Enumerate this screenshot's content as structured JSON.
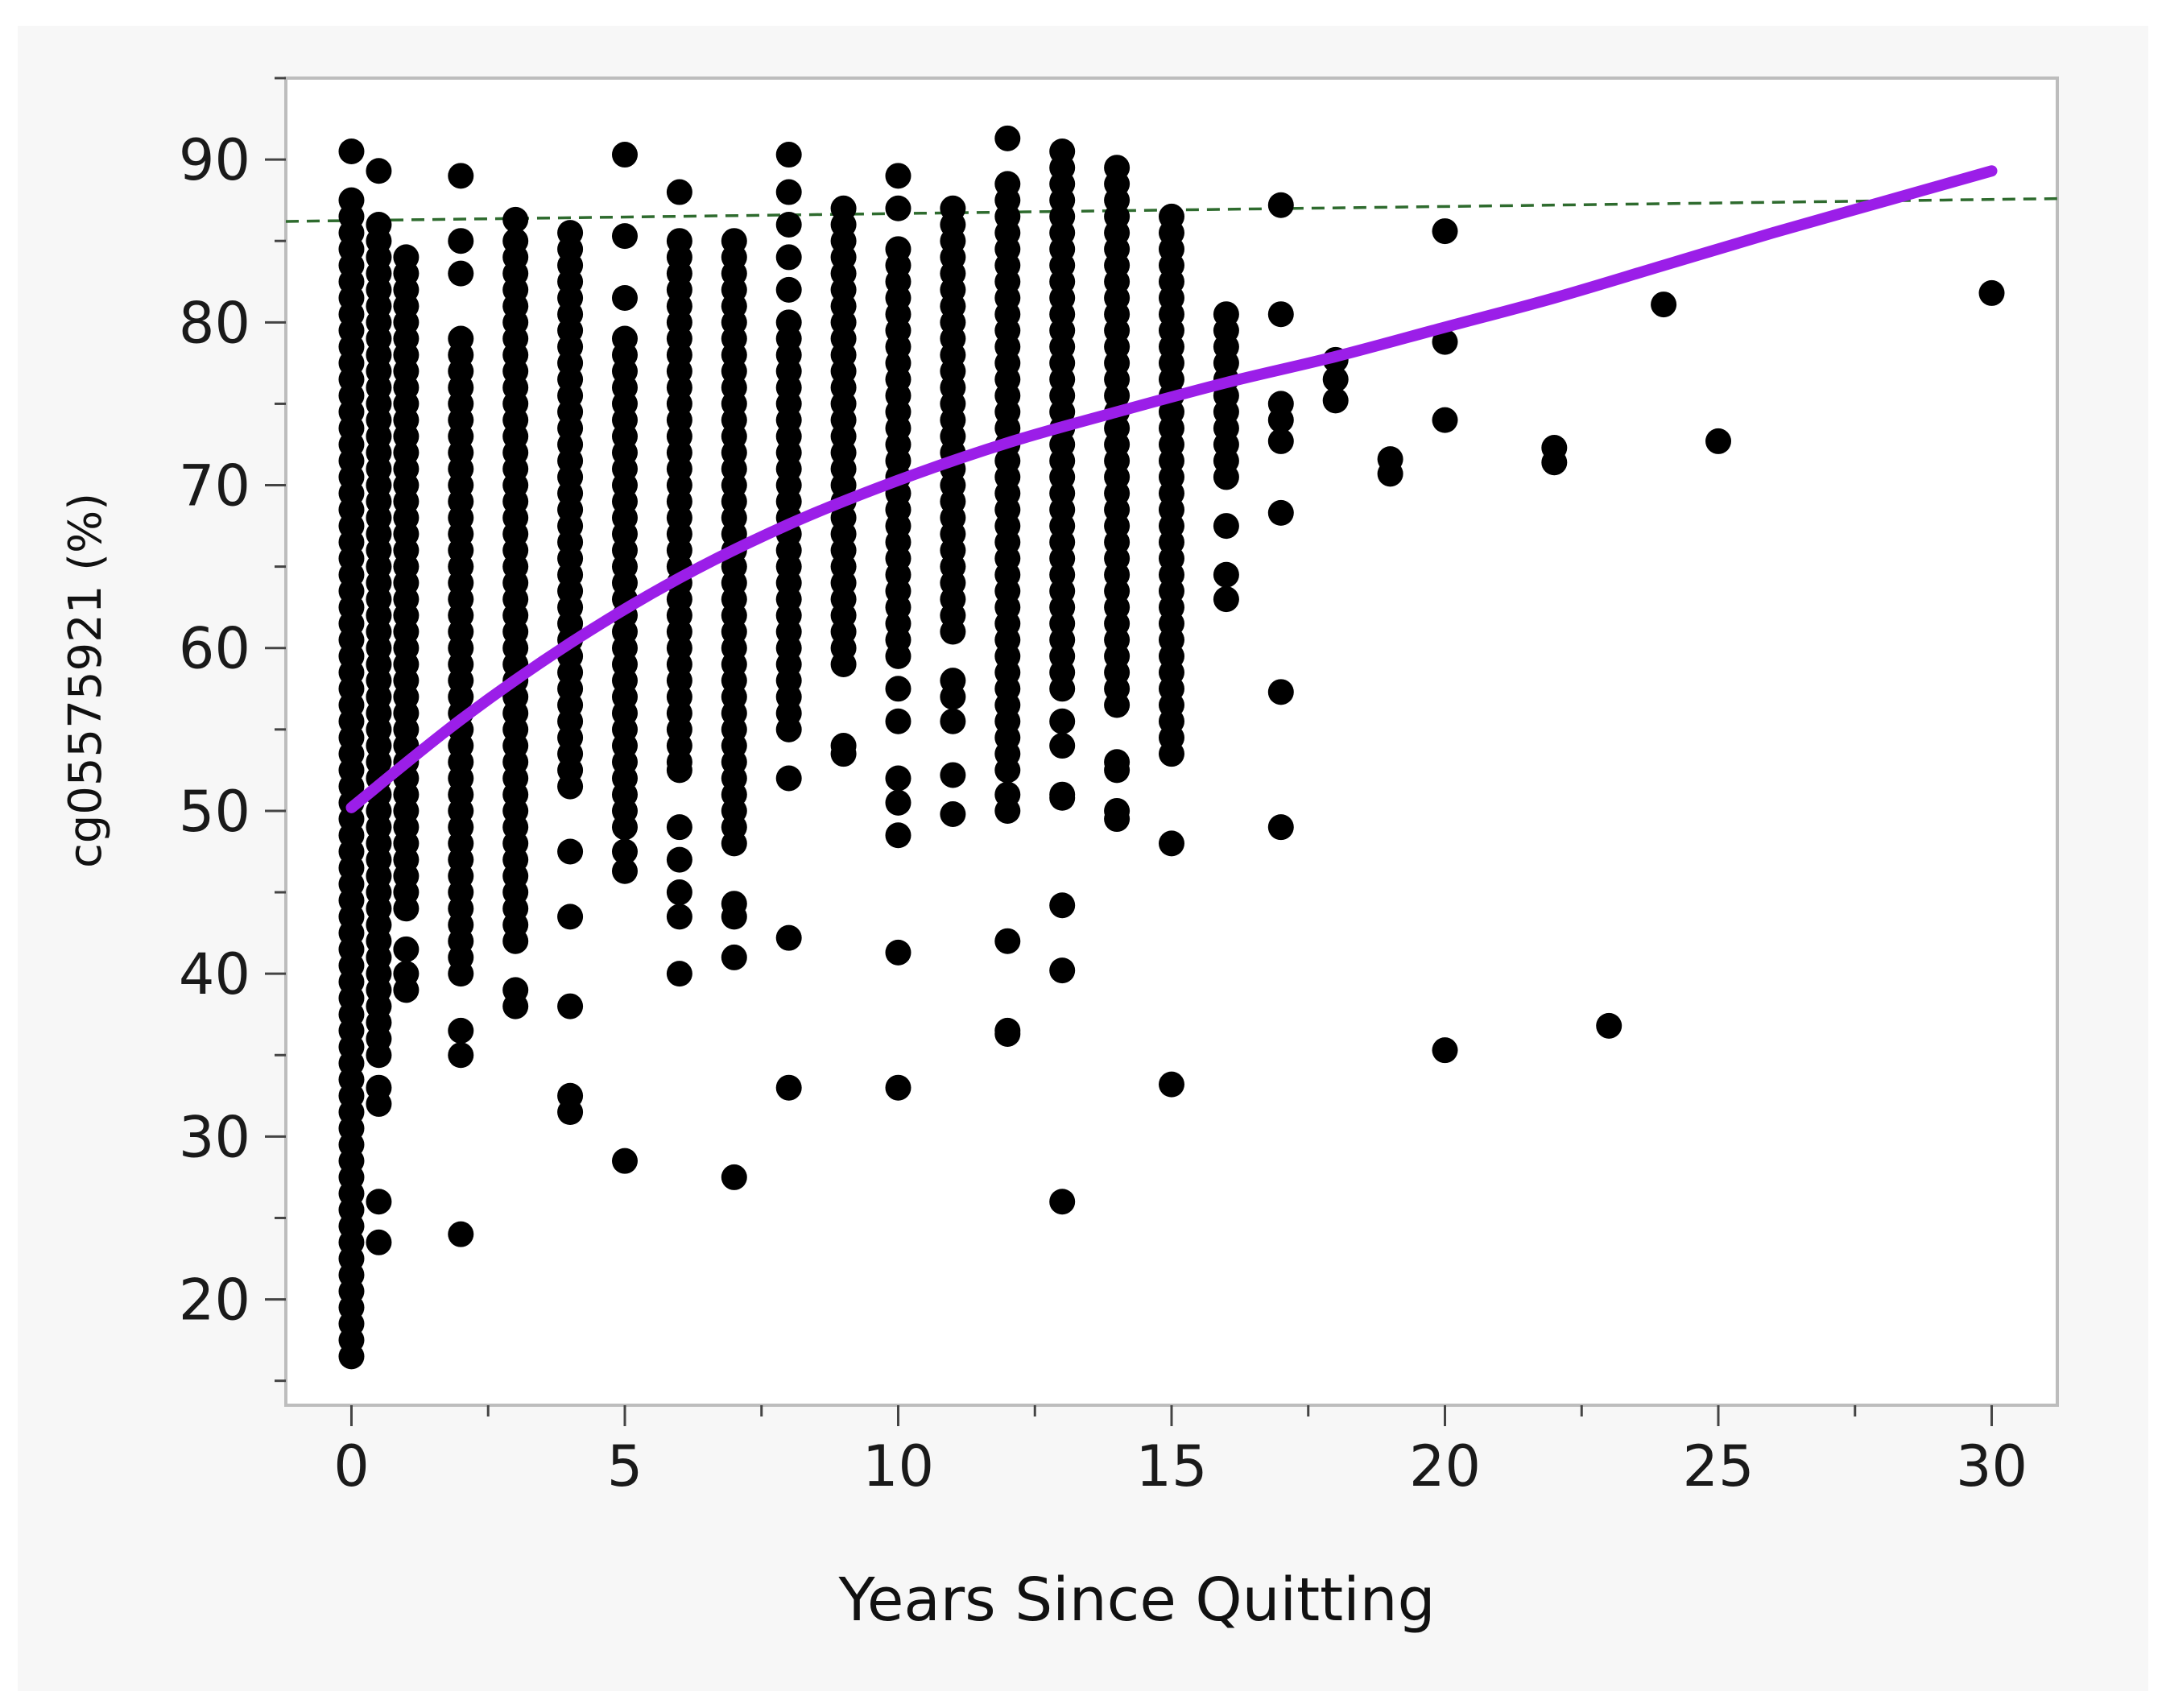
{
  "chart_data": {
    "type": "scatter",
    "title": "",
    "xlabel": "Years Since Quitting",
    "ylabel": "cg05575921 (%)",
    "xlim": [
      -1.2,
      31.2
    ],
    "ylim": [
      13.5,
      95
    ],
    "x_ticks": [
      "0",
      "5",
      "10",
      "15",
      "20",
      "25",
      "30"
    ],
    "y_ticks": [
      "20",
      "30",
      "40",
      "50",
      "60",
      "70",
      "80",
      "90"
    ],
    "grid": false,
    "legend": "none",
    "colors": {
      "points": "#000000",
      "fit_line": "#9b1ee8",
      "reference_line": "#2e6b2e",
      "panel_background": "#f7f7f7",
      "plot_background": "#ffffff",
      "frame": "#bdbdbd"
    },
    "reference_line": {
      "style": "dashed",
      "x": [
        -1.2,
        31.2
      ],
      "y": [
        86.2,
        87.6
      ]
    },
    "fit_curve": {
      "style": "solid",
      "x": [
        0,
        2,
        4,
        6,
        8,
        10,
        12,
        14,
        16,
        18,
        20,
        22,
        24,
        26,
        28,
        30
      ],
      "y": [
        50.2,
        55.6,
        60.3,
        64.3,
        67.6,
        70.3,
        72.6,
        74.5,
        76.3,
        77.9,
        79.7,
        81.5,
        83.5,
        85.5,
        87.4,
        89.3
      ]
    },
    "columns": [
      {
        "x": 0,
        "ranges": [
          [
            17.5,
            87.5
          ]
        ],
        "singles": [
          16.5,
          90.5
        ]
      },
      {
        "x": 0.5,
        "ranges": [
          [
            35,
            86
          ]
        ],
        "singles": [
          33,
          32,
          26,
          23.5,
          89.3
        ]
      },
      {
        "x": 1,
        "ranges": [
          [
            44,
            84
          ]
        ],
        "singles": [
          41.5,
          40,
          39
        ]
      },
      {
        "x": 2,
        "ranges": [
          [
            40,
            79
          ]
        ],
        "singles": [
          83,
          85,
          89,
          36.5,
          35,
          24
        ]
      },
      {
        "x": 3,
        "ranges": [
          [
            42,
            85
          ]
        ],
        "singles": [
          86.3,
          39,
          38
        ]
      },
      {
        "x": 4,
        "ranges": [
          [
            51.5,
            86
          ]
        ],
        "singles": [
          47.5,
          43.5,
          38,
          32.5,
          31.5
        ]
      },
      {
        "x": 5,
        "ranges": [
          [
            49,
            79
          ]
        ],
        "singles": [
          81.5,
          85.3,
          90.3,
          47.5,
          46.3,
          28.5
        ]
      },
      {
        "x": 6,
        "ranges": [
          [
            53,
            85.5
          ]
        ],
        "singles": [
          52.5,
          49,
          47,
          45,
          43.5,
          40,
          88
        ]
      },
      {
        "x": 7,
        "ranges": [
          [
            48,
            85
          ]
        ],
        "singles": [
          44.3,
          43.5,
          41,
          27.5
        ]
      },
      {
        "x": 8,
        "ranges": [
          [
            55,
            80
          ]
        ],
        "singles": [
          82,
          84,
          86,
          88,
          90.3,
          52,
          42.2,
          33
        ]
      },
      {
        "x": 9,
        "ranges": [
          [
            59,
            87
          ]
        ],
        "singles": [
          54,
          53.5
        ]
      },
      {
        "x": 10,
        "ranges": [
          [
            59.5,
            85
          ]
        ],
        "singles": [
          87,
          89,
          57.5,
          55.5,
          52,
          50.5,
          48.5,
          41.3,
          33
        ]
      },
      {
        "x": 11,
        "ranges": [
          [
            61,
            87
          ]
        ],
        "singles": [
          58,
          57,
          55.5,
          52.2,
          49.8
        ]
      },
      {
        "x": 12,
        "ranges": [
          [
            52.5,
            89
          ]
        ],
        "singles": [
          91.3,
          51,
          50,
          42,
          36.5,
          36.3
        ]
      },
      {
        "x": 13,
        "ranges": [
          [
            57.5,
            90.5
          ]
        ],
        "singles": [
          55.5,
          54,
          51,
          50.8,
          44.2,
          40.2,
          26
        ]
      },
      {
        "x": 14,
        "ranges": [
          [
            56.5,
            89.5
          ]
        ],
        "singles": [
          53,
          52.5,
          50,
          49.5
        ]
      },
      {
        "x": 15,
        "ranges": [
          [
            53.5,
            87
          ]
        ],
        "singles": [
          48,
          33.2
        ]
      },
      {
        "x": 16,
        "ranges": [
          [
            70.5,
            80.5
          ]
        ],
        "singles": [
          67.5,
          64.5,
          63
        ]
      },
      {
        "x": 17,
        "ranges": [],
        "singles": [
          87.2,
          80.5,
          75,
          74,
          72.7,
          68.3,
          57.3,
          49
        ]
      },
      {
        "x": 18,
        "ranges": [],
        "singles": [
          77.7,
          76.5,
          75.2
        ]
      },
      {
        "x": 19,
        "ranges": [],
        "singles": [
          71.6,
          70.7
        ]
      },
      {
        "x": 20,
        "ranges": [],
        "singles": [
          85.6,
          78.8,
          74,
          35.3
        ]
      },
      {
        "x": 22,
        "ranges": [],
        "singles": [
          72.3,
          71.4
        ]
      },
      {
        "x": 23,
        "ranges": [],
        "singles": [
          36.8
        ]
      },
      {
        "x": 24,
        "ranges": [],
        "singles": [
          81.1
        ]
      },
      {
        "x": 25,
        "ranges": [],
        "singles": [
          72.7
        ]
      },
      {
        "x": 30,
        "ranges": [],
        "singles": [
          81.8
        ]
      }
    ]
  }
}
